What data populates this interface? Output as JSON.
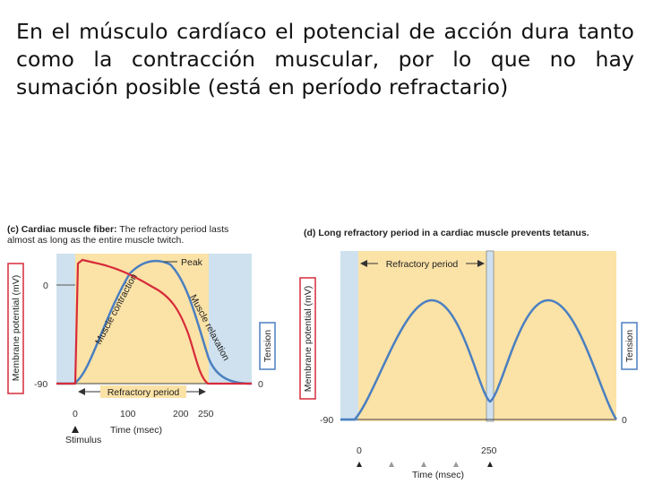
{
  "slide": {
    "title": "En el músculo cardíaco el potencial de acción dura tanto como la contracción muscular, por lo que no hay sumación posible (está en período refractario)"
  },
  "panel_c": {
    "caption_label": "(c) Cardiac muscle fiber:",
    "caption_rest": " The refractory period lasts",
    "caption_line2": "almost as long as the entire muscle twitch.",
    "y_axis_label": "Membrane potential (mV)",
    "tension_label": "Tension",
    "y_ticks": [
      "0",
      "-90"
    ],
    "tension_ticks": [
      "0"
    ],
    "x_ticks": [
      "0",
      "100",
      "200",
      "250"
    ],
    "x_axis_label": "Time (msec)",
    "stimulus_label": "Stimulus",
    "peak_label": "Peak",
    "contraction_label": "Muscle contraction",
    "relaxation_label": "Muscle relaxation",
    "refractory_label": "Refractory period"
  },
  "panel_d": {
    "caption": "(d) Long refractory period in a cardiac muscle prevents tetanus.",
    "y_axis_label": "Membrane potential (mV)",
    "tension_label": "Tension",
    "y_ticks": [
      "-90"
    ],
    "tension_ticks": [
      "0"
    ],
    "x_ticks": [
      "0",
      "250"
    ],
    "x_axis_label": "Time (msec)",
    "refractory_label": "Refractory period"
  },
  "colors": {
    "refractory_fill": "#fbe2a6",
    "rest_fill": "#cfe1ee",
    "action_potential": "#d62b3a",
    "tension_curve": "#4a7fc1",
    "axis_label_border_red": "#d62b3a",
    "axis_label_border_blue": "#4a7fc1"
  }
}
